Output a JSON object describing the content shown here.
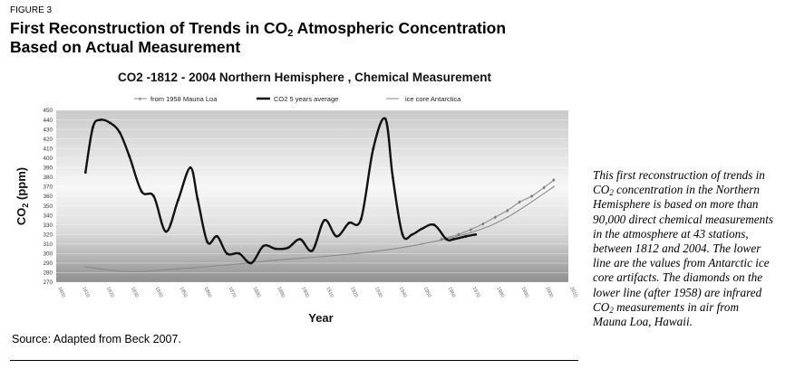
{
  "figure": {
    "label": "FIGURE 3",
    "title_part1": "First Reconstruction of Trends in CO",
    "title_sub": "2",
    "title_part2": " Atmospheric Concentration",
    "title_line2": "Based on Actual Measurement"
  },
  "source_text": "Source: Adapted from Beck 2007.",
  "side_note": {
    "p1": "This first reconstruction of trends in CO",
    "p1_sub": "2",
    "p2": " concentration in the Northern Hemisphere is based on more than 90,000 direct chemical measurements in the atmosphere at 43 stations, between 1812 and 2004. The lower line are the values from Antarctic ice core artifacts. The diamonds on the lower line (after 1958) are infrared CO",
    "p2_sub": "2",
    "p3": " measurements in air from Mauna Loa, Hawaii."
  },
  "chart_data": {
    "type": "line",
    "title": "CO2 -1812 - 2004 Northern Hemisphere , Chemical Measurement",
    "xlabel": "Year",
    "ylabel_main": "CO",
    "ylabel_sub": "2",
    "ylabel_tail": " (ppm)",
    "xlim": [
      1800,
      2010
    ],
    "ylim": [
      270,
      450
    ],
    "y_ticks": [
      270,
      280,
      290,
      300,
      310,
      320,
      330,
      340,
      350,
      360,
      370,
      380,
      390,
      400,
      410,
      420,
      430,
      440,
      450
    ],
    "x_ticks": [
      1800,
      1810,
      1820,
      1830,
      1840,
      1850,
      1860,
      1870,
      1880,
      1890,
      1900,
      1910,
      1920,
      1930,
      1940,
      1950,
      1960,
      1970,
      1980,
      1990,
      2000,
      2010
    ],
    "legend_position": "top",
    "colors": {
      "main_line": "#111111",
      "ice_core": "#8a8a8a",
      "mauna_loa": "#9a9a9a"
    },
    "series": [
      {
        "name": "CO2 5 years average",
        "x": [
          1812,
          1815,
          1818,
          1822,
          1826,
          1830,
          1835,
          1840,
          1845,
          1850,
          1855,
          1858,
          1862,
          1866,
          1870,
          1875,
          1880,
          1885,
          1890,
          1895,
          1900,
          1905,
          1910,
          1915,
          1920,
          1925,
          1930,
          1935,
          1938,
          1942,
          1946,
          1950,
          1955,
          1960,
          1963,
          1968,
          1972
        ],
        "y": [
          385,
          432,
          440,
          437,
          427,
          402,
          365,
          360,
          323,
          356,
          390,
          357,
          312,
          318,
          300,
          300,
          290,
          308,
          305,
          306,
          315,
          303,
          335,
          318,
          332,
          336,
          410,
          441,
          380,
          320,
          320,
          326,
          330,
          315,
          315,
          318,
          320
        ]
      },
      {
        "name": "ice core Antarctica",
        "x": [
          1812,
          1830,
          1850,
          1870,
          1890,
          1910,
          1930,
          1950,
          1970,
          1985,
          2004
        ],
        "y": [
          286,
          281,
          284,
          288,
          293,
          297,
          302,
          310,
          322,
          338,
          370
        ]
      },
      {
        "name": "from 1958 Mauna Loa",
        "x": [
          1958,
          1965,
          1970,
          1975,
          1980,
          1985,
          1990,
          1995,
          2000,
          2004
        ],
        "y": [
          315,
          320,
          325,
          331,
          338,
          345,
          354,
          360,
          369,
          377
        ]
      }
    ]
  }
}
